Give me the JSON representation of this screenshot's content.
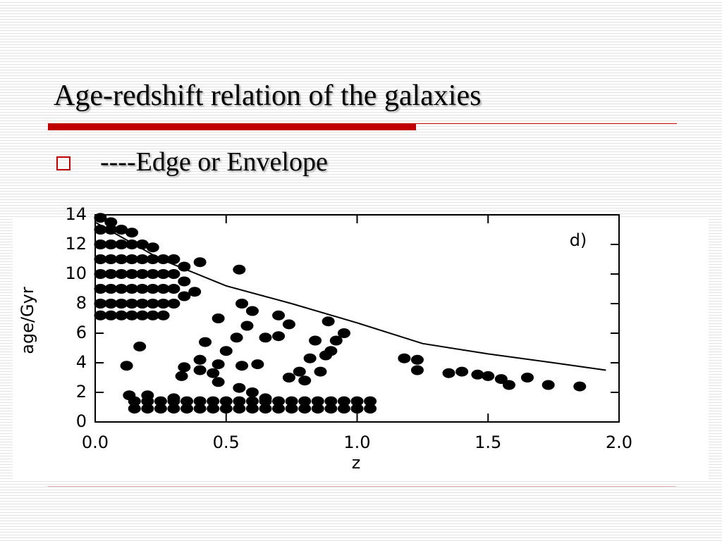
{
  "slide": {
    "title": "Age-redshift relation of the galaxies",
    "bullet": "----Edge or Envelope"
  },
  "chart_data": {
    "type": "scatter",
    "x_label": "z",
    "y_label": "age/Gyr",
    "annotation": "d)",
    "color": "#000000",
    "xlim": [
      0,
      2
    ],
    "ylim": [
      0,
      14
    ],
    "xticks": [
      {
        "value": 0,
        "label": "0.0"
      },
      {
        "value": 0.5,
        "label": "0.5"
      },
      {
        "value": 1,
        "label": "1.0"
      },
      {
        "value": 1.5,
        "label": "1.5"
      },
      {
        "value": 2,
        "label": "2.0"
      }
    ],
    "yticks": [
      0,
      2,
      4,
      6,
      8,
      10,
      12,
      14
    ],
    "x": [
      0.02,
      0.02,
      0.02,
      0.02,
      0.02,
      0.02,
      0.02,
      0.02,
      0.06,
      0.06,
      0.06,
      0.06,
      0.06,
      0.06,
      0.06,
      0.06,
      0.1,
      0.1,
      0.1,
      0.1,
      0.1,
      0.1,
      0.1,
      0.14,
      0.14,
      0.14,
      0.14,
      0.14,
      0.14,
      0.14,
      0.18,
      0.18,
      0.18,
      0.18,
      0.18,
      0.18,
      0.22,
      0.22,
      0.22,
      0.22,
      0.22,
      0.22,
      0.26,
      0.26,
      0.26,
      0.26,
      0.26,
      0.3,
      0.3,
      0.3,
      0.3,
      0.34,
      0.34,
      0.34,
      0.15,
      0.15,
      0.2,
      0.2,
      0.25,
      0.25,
      0.3,
      0.3,
      0.35,
      0.35,
      0.4,
      0.4,
      0.45,
      0.45,
      0.5,
      0.5,
      0.55,
      0.55,
      0.6,
      0.6,
      0.65,
      0.65,
      0.7,
      0.7,
      0.75,
      0.75,
      0.8,
      0.8,
      0.85,
      0.85,
      0.9,
      0.9,
      0.95,
      0.95,
      1.0,
      1.0,
      1.05,
      1.05,
      0.12,
      0.17,
      0.13,
      0.2,
      0.33,
      0.34,
      0.4,
      0.4,
      0.4,
      0.38,
      0.42,
      0.45,
      0.47,
      0.47,
      0.47,
      0.5,
      0.54,
      0.55,
      0.56,
      0.56,
      0.58,
      0.6,
      0.62,
      0.65,
      0.7,
      0.7,
      0.74,
      0.74,
      0.78,
      0.8,
      0.82,
      0.84,
      0.86,
      0.88,
      0.9,
      0.92,
      0.95,
      0.89,
      1.18,
      1.23,
      1.23,
      1.35,
      1.4,
      1.46,
      1.5,
      1.55,
      1.58,
      1.65,
      1.73,
      1.85,
      0.55,
      0.6,
      0.3,
      0.65
    ],
    "values": [
      7.2,
      8,
      9,
      10,
      11,
      12,
      13,
      13.8,
      7.2,
      8,
      9,
      10,
      11,
      12,
      13,
      13.5,
      7.2,
      8,
      9,
      10,
      11,
      12,
      13,
      7.2,
      8,
      9,
      10,
      11,
      12,
      12.8,
      7.2,
      8,
      9,
      10,
      11,
      12,
      7.2,
      8,
      9,
      10,
      11,
      11.8,
      7.2,
      8,
      9,
      10,
      11,
      8,
      9,
      10,
      11,
      8.5,
      9.5,
      10.5,
      0.9,
      1.4,
      0.9,
      1.4,
      0.9,
      1.4,
      0.9,
      1.4,
      0.9,
      1.4,
      0.9,
      1.4,
      0.9,
      1.4,
      0.9,
      1.4,
      0.9,
      1.4,
      0.9,
      1.4,
      0.9,
      1.4,
      0.9,
      1.4,
      0.9,
      1.4,
      0.9,
      1.4,
      0.9,
      1.4,
      0.9,
      1.4,
      0.9,
      1.4,
      0.9,
      1.4,
      0.9,
      1.4,
      3.8,
      5.1,
      1.8,
      1.8,
      3.1,
      3.7,
      3.5,
      4.2,
      10.8,
      8.8,
      5.4,
      3.3,
      3.9,
      2.7,
      7.0,
      4.8,
      5.7,
      10.3,
      3.8,
      8.0,
      6.5,
      7.5,
      3.9,
      5.7,
      5.8,
      7.2,
      6.6,
      3.0,
      3.4,
      2.8,
      4.3,
      5.5,
      3.4,
      4.5,
      4.8,
      5.5,
      6.0,
      6.8,
      4.3,
      4.2,
      3.5,
      3.3,
      3.4,
      3.2,
      3.1,
      2.9,
      2.5,
      3.0,
      2.5,
      2.4,
      2.3,
      2.0,
      1.6,
      1.6
    ],
    "envelope": {
      "type": "line",
      "color": "#000000",
      "x": [
        0,
        0.25,
        0.5,
        0.75,
        1.0,
        1.25,
        1.5,
        1.75,
        1.95
      ],
      "values": [
        13.5,
        11,
        9.2,
        8.0,
        6.7,
        5.3,
        4.6,
        4.0,
        3.5
      ]
    }
  }
}
